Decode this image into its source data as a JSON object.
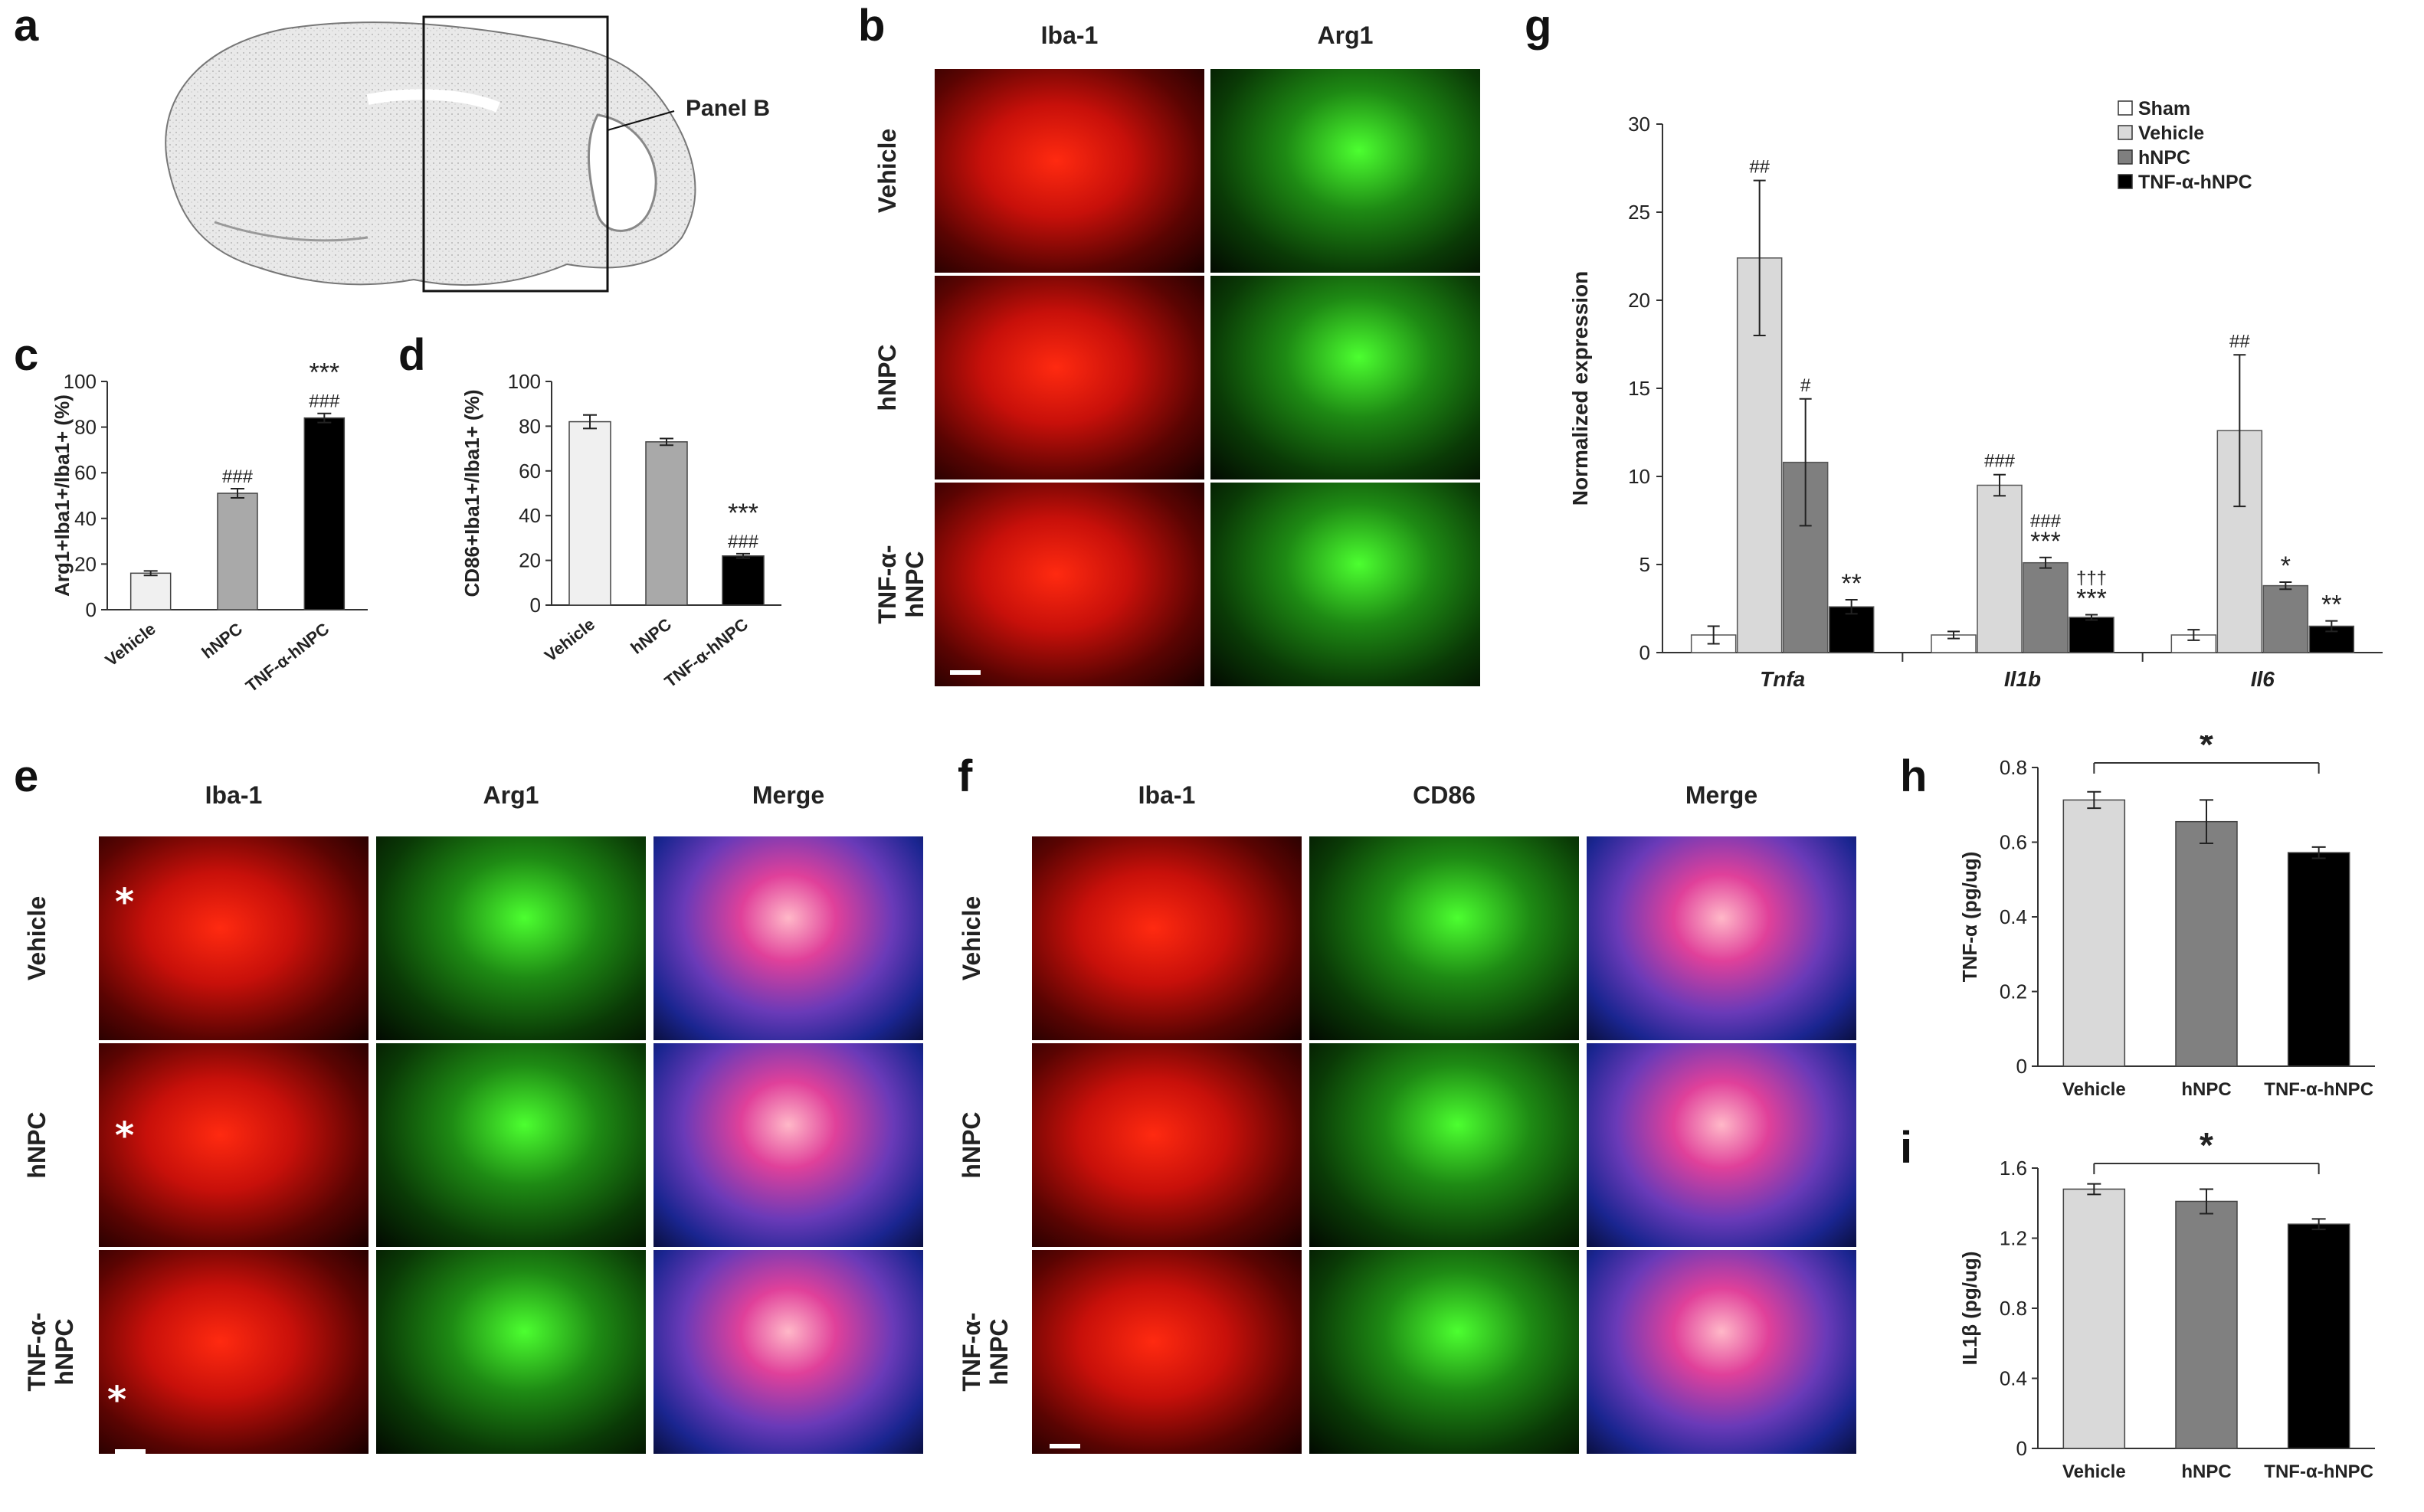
{
  "panels": {
    "a": {
      "label": "a",
      "callout": "Panel B"
    },
    "b": {
      "label": "b",
      "cols": [
        "Iba-1",
        "Arg1"
      ],
      "rows": [
        "Vehicle",
        "hNPC",
        "TNF-α-\nhNPC"
      ]
    },
    "c": {
      "label": "c"
    },
    "d": {
      "label": "d"
    },
    "e": {
      "label": "e",
      "cols": [
        "Iba-1",
        "Arg1",
        "Merge"
      ],
      "rows": [
        "Vehicle",
        "hNPC",
        "TNF-α-\nhNPC"
      ],
      "asterisk": "*"
    },
    "f": {
      "label": "f",
      "cols": [
        "Iba-1",
        "CD86",
        "Merge"
      ],
      "rows": [
        "Vehicle",
        "hNPC",
        "TNF-α-\nhNPC"
      ]
    },
    "g": {
      "label": "g"
    },
    "h": {
      "label": "h"
    },
    "i": {
      "label": "i"
    }
  },
  "colors": {
    "iba_red": "#e8140c",
    "arg_green": "#22c21a",
    "merge_blue": "#2a3ec0",
    "bar_light": "#f0f0f0",
    "bar_mid": "#a9a9a9",
    "bar_black": "#000000",
    "g_sham": "#ffffff",
    "g_vehicle": "#d9d9d9",
    "g_hnpc": "#7f7f7f",
    "g_tnf": "#000000",
    "hi_vehicle": "#d9d9d9",
    "hi_hnpc": "#808080",
    "hi_tnf": "#000000"
  },
  "chart_data": [
    {
      "id": "c",
      "type": "bar",
      "categories": [
        "Vehicle",
        "hNPC",
        "TNF-α-hNPC"
      ],
      "values": [
        16,
        51,
        84
      ],
      "errors": [
        1,
        2,
        2
      ],
      "annotations": [
        [],
        [
          "###"
        ],
        [
          "***",
          "###"
        ]
      ],
      "ylabel": "Arg1+Iba1+/Iba1+ (%)",
      "ylim": [
        0,
        100
      ],
      "yticks": [
        "0",
        "20",
        "40",
        "60",
        "80",
        "100"
      ]
    },
    {
      "id": "d",
      "type": "bar",
      "categories": [
        "Vehicle",
        "hNPC",
        "TNF-α-hNPC"
      ],
      "values": [
        82,
        73,
        22
      ],
      "errors": [
        3,
        1.5,
        1
      ],
      "annotations": [
        [],
        [],
        [
          "***",
          "###"
        ]
      ],
      "ylabel": "CD86+Iba1+/Iba1+ (%)",
      "ylim": [
        0,
        100
      ],
      "yticks": [
        "0",
        "20",
        "40",
        "60",
        "80",
        "100"
      ]
    },
    {
      "id": "g",
      "type": "bar",
      "categories": [
        "Tnfa",
        "Il1b",
        "Il6"
      ],
      "series": [
        {
          "name": "Sham",
          "values": [
            1,
            1,
            1
          ],
          "errors": [
            0.5,
            0.2,
            0.3
          ]
        },
        {
          "name": "Vehicle",
          "values": [
            22.4,
            9.5,
            12.6
          ],
          "errors": [
            4.4,
            0.6,
            4.3
          ]
        },
        {
          "name": "hNPC",
          "values": [
            10.8,
            5.1,
            3.8
          ],
          "errors": [
            3.6,
            0.3,
            0.2
          ]
        },
        {
          "name": "TNF-α-hNPC",
          "values": [
            2.6,
            2.0,
            1.5
          ],
          "errors": [
            0.4,
            0.15,
            0.3
          ]
        }
      ],
      "annotations": [
        [
          [],
          [
            "##"
          ],
          [
            "#"
          ],
          [
            "**"
          ]
        ],
        [
          [],
          [
            "###"
          ],
          [
            "###",
            "***"
          ],
          [
            "†††",
            "***"
          ]
        ],
        [
          [],
          [
            "##"
          ],
          [
            "*"
          ],
          [
            "**"
          ]
        ]
      ],
      "ylabel": "Normalized expression",
      "ylim": [
        0,
        30
      ],
      "yticks": [
        "0",
        "5",
        "10",
        "15",
        "20",
        "25",
        "30"
      ]
    },
    {
      "id": "h",
      "type": "bar",
      "categories": [
        "Vehicle",
        "hNPC",
        "TNF-α-hNPC"
      ],
      "values": [
        0.713,
        0.655,
        0.572
      ],
      "errors": [
        0.022,
        0.058,
        0.015
      ],
      "significance": "*",
      "ylabel": "TNF-α (pg/ug)",
      "ylim": [
        0,
        0.8
      ],
      "yticks": [
        "0",
        "0.2",
        "0.4",
        "0.6",
        "0.8"
      ]
    },
    {
      "id": "i",
      "type": "bar",
      "categories": [
        "Vehicle",
        "hNPC",
        "TNF-α-hNPC"
      ],
      "values": [
        1.48,
        1.41,
        1.28
      ],
      "errors": [
        0.03,
        0.07,
        0.03
      ],
      "significance": "*",
      "ylabel": "IL1β (pg/ug)",
      "ylim": [
        0,
        1.6
      ],
      "yticks": [
        "0",
        "0.4",
        "0.8",
        "1.2",
        "1.6"
      ]
    }
  ]
}
